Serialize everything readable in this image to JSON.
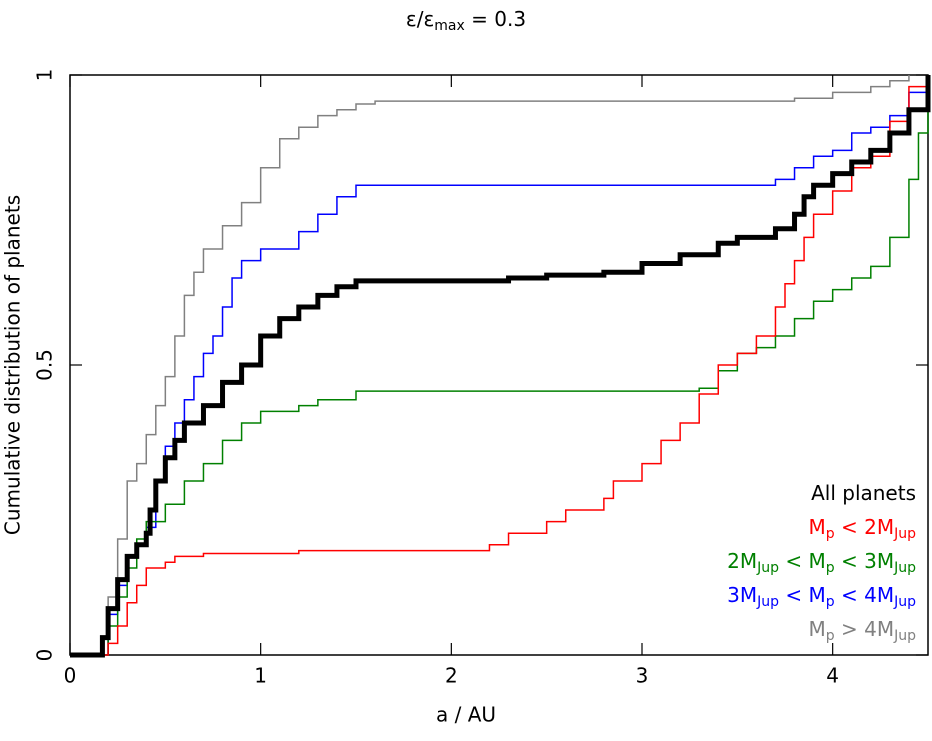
{
  "chart_data": {
    "type": "step",
    "title": [
      "ε/ε",
      "max",
      " = 0.3"
    ],
    "x_label": "a / AU",
    "y_label": "Cumulative distribution of planets",
    "xlim": [
      0,
      4.5
    ],
    "ylim": [
      0,
      1
    ],
    "xticks": [
      0,
      1,
      2,
      3,
      4
    ],
    "yticks": [
      0,
      0.5,
      1
    ],
    "legend": "lower right",
    "series": [
      {
        "name": [
          "All planets"
        ],
        "color": "#000000",
        "x": [
          0,
          0.15,
          0.17,
          0.2,
          0.25,
          0.3,
          0.35,
          0.4,
          0.42,
          0.45,
          0.5,
          0.55,
          0.6,
          0.7,
          0.8,
          0.9,
          1.0,
          1.1,
          1.2,
          1.3,
          1.4,
          1.5,
          2.2,
          2.3,
          2.5,
          2.8,
          3.0,
          3.2,
          3.4,
          3.5,
          3.7,
          3.8,
          3.85,
          3.9,
          4.0,
          4.1,
          4.2,
          4.3,
          4.4,
          4.5
        ],
        "values": [
          0,
          0,
          0.03,
          0.08,
          0.13,
          0.17,
          0.19,
          0.21,
          0.25,
          0.3,
          0.34,
          0.37,
          0.4,
          0.43,
          0.47,
          0.5,
          0.55,
          0.58,
          0.6,
          0.62,
          0.635,
          0.645,
          0.645,
          0.65,
          0.655,
          0.66,
          0.675,
          0.69,
          0.71,
          0.72,
          0.735,
          0.76,
          0.79,
          0.81,
          0.83,
          0.85,
          0.87,
          0.9,
          0.94,
          1
        ]
      },
      {
        "name": [
          "M",
          "p",
          " < 2M",
          "Jup"
        ],
        "color": "#ff0000",
        "x": [
          0,
          0.17,
          0.2,
          0.25,
          0.3,
          0.35,
          0.4,
          0.5,
          0.55,
          0.7,
          1.2,
          2.2,
          2.3,
          2.5,
          2.6,
          2.8,
          2.85,
          3.0,
          3.1,
          3.2,
          3.3,
          3.4,
          3.5,
          3.6,
          3.7,
          3.75,
          3.8,
          3.85,
          3.9,
          4.0,
          4.1,
          4.2,
          4.3,
          4.4,
          4.5
        ],
        "values": [
          0,
          0,
          0.02,
          0.05,
          0.09,
          0.12,
          0.15,
          0.16,
          0.17,
          0.175,
          0.18,
          0.19,
          0.21,
          0.23,
          0.25,
          0.27,
          0.3,
          0.33,
          0.37,
          0.4,
          0.45,
          0.5,
          0.52,
          0.55,
          0.6,
          0.64,
          0.68,
          0.72,
          0.76,
          0.8,
          0.84,
          0.86,
          0.92,
          0.98,
          1
        ]
      },
      {
        "name": [
          "2M",
          "Jup",
          " < M",
          "p",
          " < 3M",
          "Jup"
        ],
        "color": "#008000",
        "x": [
          0,
          0.17,
          0.2,
          0.25,
          0.3,
          0.35,
          0.4,
          0.5,
          0.6,
          0.7,
          0.8,
          0.9,
          1.0,
          1.2,
          1.3,
          1.5,
          3.3,
          3.4,
          3.5,
          3.6,
          3.7,
          3.8,
          3.9,
          4.0,
          4.1,
          4.2,
          4.3,
          4.4,
          4.45,
          4.5
        ],
        "values": [
          0,
          0,
          0.05,
          0.1,
          0.15,
          0.2,
          0.23,
          0.26,
          0.3,
          0.33,
          0.37,
          0.4,
          0.42,
          0.43,
          0.44,
          0.455,
          0.46,
          0.49,
          0.52,
          0.53,
          0.55,
          0.58,
          0.61,
          0.63,
          0.65,
          0.67,
          0.72,
          0.82,
          0.9,
          1
        ]
      },
      {
        "name": [
          "3M",
          "Jup",
          " < M",
          "p",
          " < 4M",
          "Jup"
        ],
        "color": "#0000ff",
        "x": [
          0,
          0.15,
          0.2,
          0.25,
          0.3,
          0.35,
          0.4,
          0.45,
          0.5,
          0.55,
          0.6,
          0.65,
          0.7,
          0.75,
          0.8,
          0.85,
          0.9,
          1.0,
          1.2,
          1.3,
          1.4,
          1.5,
          3.6,
          3.7,
          3.8,
          3.9,
          4.0,
          4.1,
          4.2,
          4.3,
          4.4,
          4.5
        ],
        "values": [
          0,
          0,
          0.07,
          0.12,
          0.17,
          0.19,
          0.22,
          0.3,
          0.36,
          0.4,
          0.44,
          0.48,
          0.52,
          0.55,
          0.6,
          0.65,
          0.68,
          0.7,
          0.73,
          0.76,
          0.79,
          0.81,
          0.81,
          0.82,
          0.84,
          0.86,
          0.87,
          0.9,
          0.91,
          0.93,
          0.97,
          1
        ]
      },
      {
        "name": [
          "M",
          "p",
          " > 4M",
          "Jup"
        ],
        "color": "#808080",
        "x": [
          0,
          0.15,
          0.2,
          0.25,
          0.3,
          0.35,
          0.4,
          0.45,
          0.5,
          0.55,
          0.6,
          0.65,
          0.7,
          0.8,
          0.9,
          1.0,
          1.1,
          1.2,
          1.3,
          1.4,
          1.5,
          1.6,
          3.8,
          4.0,
          4.2,
          4.3,
          4.4
        ],
        "values": [
          0,
          0,
          0.1,
          0.2,
          0.3,
          0.33,
          0.38,
          0.43,
          0.48,
          0.55,
          0.62,
          0.66,
          0.7,
          0.74,
          0.78,
          0.84,
          0.89,
          0.91,
          0.93,
          0.94,
          0.95,
          0.955,
          0.96,
          0.97,
          0.98,
          0.99,
          1
        ]
      }
    ]
  }
}
